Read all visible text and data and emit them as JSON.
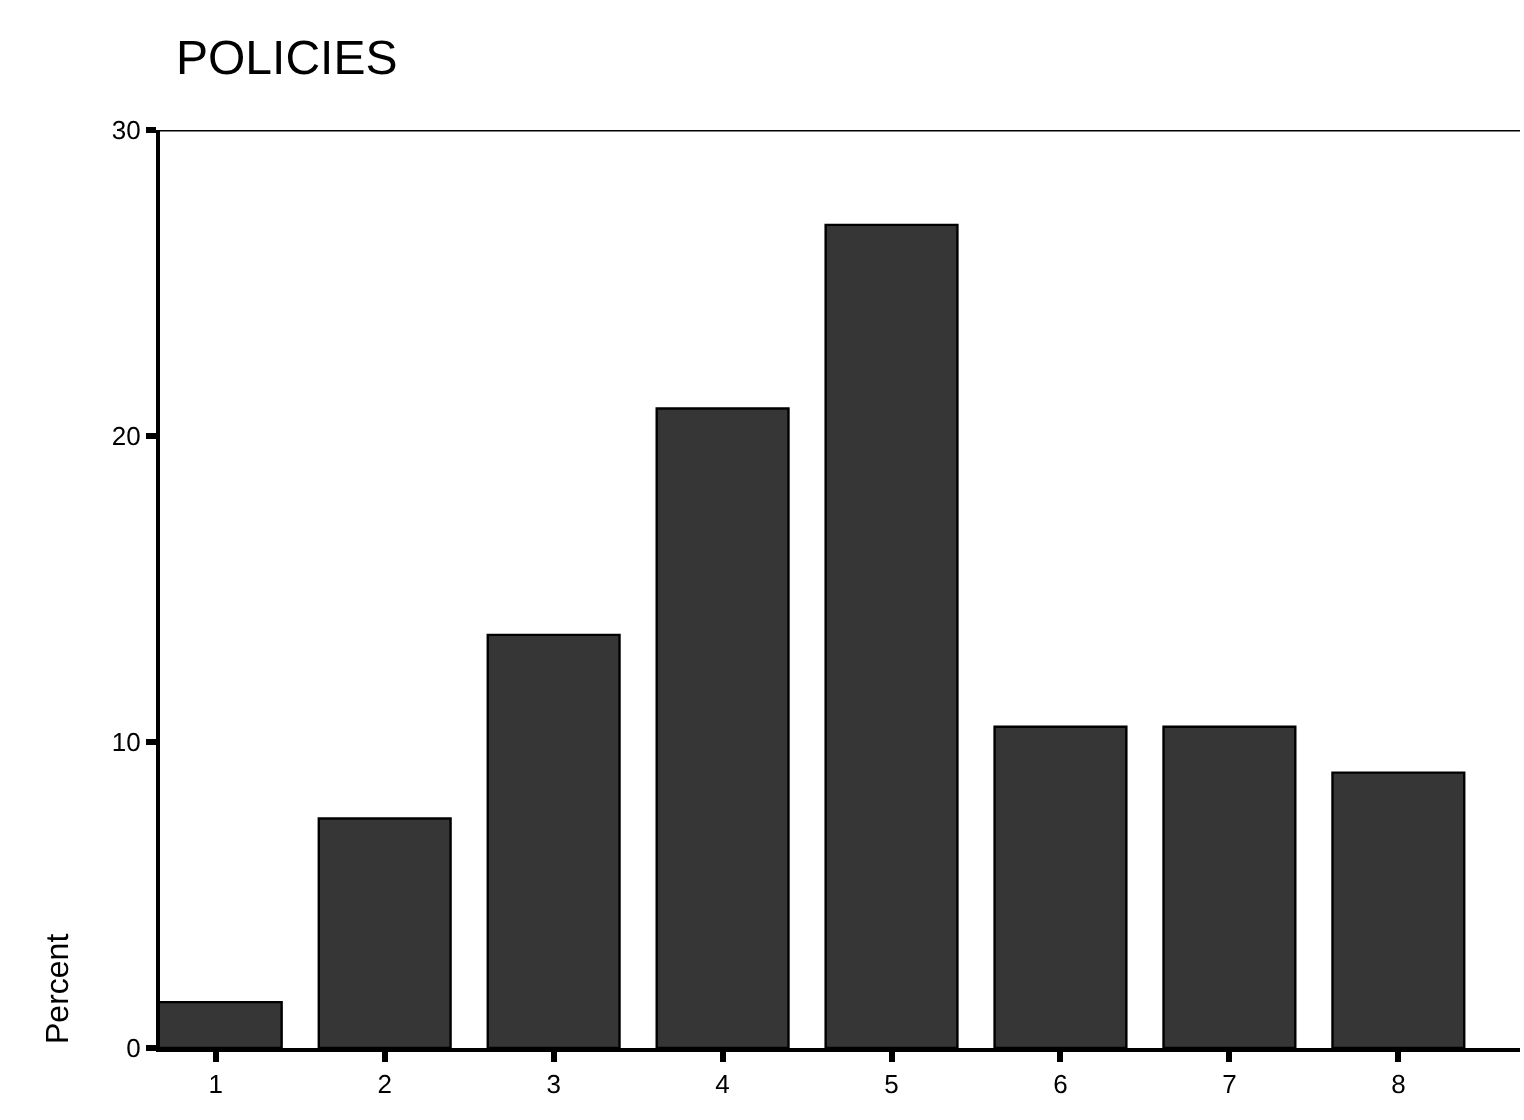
{
  "chart_data": {
    "type": "bar",
    "title": "POLICIES",
    "ylabel": "Percent",
    "categories": [
      "1",
      "2",
      "3",
      "4",
      "5",
      "6",
      "7",
      "8"
    ],
    "values": [
      1.5,
      7.5,
      13.5,
      20.9,
      26.9,
      10.5,
      10.5,
      9.0
    ],
    "color": "#363636",
    "ylim": [
      0,
      30
    ],
    "yticks": [
      0,
      10,
      20,
      30
    ]
  }
}
